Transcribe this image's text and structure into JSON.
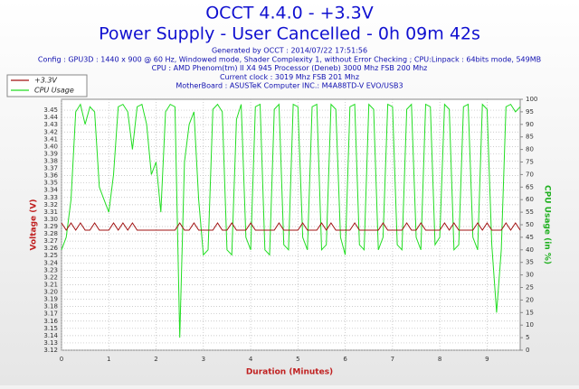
{
  "chart_data": {
    "type": "line",
    "title": "OCCT 4.4.0 - +3.3V",
    "subtitle": "Power Supply - User Cancelled - 0h 09m 42s",
    "info": [
      "Generated by OCCT : 2014/07/22 17:51:56",
      "Config : GPU3D : 1440 x 900 @ 60 Hz, Windowed mode, Shader Complexity 1, without Error Checking ; CPU:Linpack : 64bits mode, 549MB",
      "CPU : AMD Phenom(tm) II X4 945 Processor (Deneb) 3000 Mhz FSB 200 Mhz",
      "Current clock : 3019 Mhz FSB 201 Mhz",
      "MotherBoard : ASUSTeK Computer INC.: M4A88TD-V EVO/USB3"
    ],
    "xlabel": "Duration (Minutes)",
    "ylabel": "Voltage (V)",
    "y2label": "CPU Usage (in %)",
    "grid": true,
    "legend": "top-left",
    "x": [
      0,
      0.1,
      0.2,
      0.3,
      0.4,
      0.5,
      0.6,
      0.7,
      0.8,
      0.9,
      1,
      1.1,
      1.2,
      1.3,
      1.4,
      1.5,
      1.6,
      1.7,
      1.8,
      1.9,
      2,
      2.1,
      2.2,
      2.3,
      2.4,
      2.5,
      2.6,
      2.7,
      2.8,
      2.9,
      3,
      3.1,
      3.2,
      3.3,
      3.4,
      3.5,
      3.6,
      3.7,
      3.8,
      3.9,
      4,
      4.1,
      4.2,
      4.3,
      4.4,
      4.5,
      4.6,
      4.7,
      4.8,
      4.9,
      5,
      5.1,
      5.2,
      5.3,
      5.4,
      5.5,
      5.6,
      5.7,
      5.8,
      5.9,
      6,
      6.1,
      6.2,
      6.3,
      6.4,
      6.5,
      6.6,
      6.7,
      6.8,
      6.9,
      7,
      7.1,
      7.2,
      7.3,
      7.4,
      7.5,
      7.6,
      7.7,
      7.8,
      7.9,
      8,
      8.1,
      8.2,
      8.3,
      8.4,
      8.5,
      8.6,
      8.7,
      8.8,
      8.9,
      9,
      9.1,
      9.2,
      9.3,
      9.4,
      9.5,
      9.6,
      9.7
    ],
    "xlim": [
      0,
      9.7
    ],
    "xticks": [
      0,
      1,
      2,
      3,
      4,
      5,
      6,
      7,
      8,
      9
    ],
    "ylim": [
      3.12,
      3.465
    ],
    "yticks": [
      3.12,
      3.13,
      3.14,
      3.15,
      3.16,
      3.17,
      3.18,
      3.19,
      {
        "value": 3.2,
        "label": "3.20"
      },
      3.21,
      3.22,
      3.23,
      3.24,
      3.25,
      3.26,
      3.27,
      3.28,
      3.29,
      {
        "value": 3.3,
        "label": "3.30"
      },
      3.31,
      3.32,
      3.33,
      3.34,
      3.35,
      3.36,
      3.37,
      3.38,
      3.39,
      {
        "value": 3.4,
        "label": "3.40"
      },
      3.41,
      3.42,
      3.43,
      3.44,
      3.45
    ],
    "y2lim": [
      0,
      100
    ],
    "y2ticks": [
      0,
      5,
      10,
      15,
      20,
      25,
      30,
      35,
      40,
      45,
      50,
      55,
      60,
      65,
      70,
      75,
      80,
      85,
      90,
      95,
      100
    ],
    "series": [
      {
        "name": "+3.3V",
        "color": "#a01010",
        "values": [
          3.295,
          3.285,
          3.295,
          3.285,
          3.295,
          3.285,
          3.285,
          3.295,
          3.285,
          3.285,
          3.285,
          3.295,
          3.285,
          3.295,
          3.285,
          3.295,
          3.285,
          3.285,
          3.285,
          3.285,
          3.285,
          3.285,
          3.285,
          3.285,
          3.285,
          3.295,
          3.285,
          3.285,
          3.295,
          3.285,
          3.285,
          3.285,
          3.285,
          3.295,
          3.285,
          3.285,
          3.295,
          3.285,
          3.285,
          3.285,
          3.295,
          3.285,
          3.285,
          3.285,
          3.285,
          3.285,
          3.295,
          3.285,
          3.285,
          3.285,
          3.285,
          3.295,
          3.285,
          3.285,
          3.285,
          3.295,
          3.285,
          3.295,
          3.285,
          3.285,
          3.285,
          3.285,
          3.295,
          3.285,
          3.285,
          3.285,
          3.285,
          3.285,
          3.295,
          3.285,
          3.285,
          3.285,
          3.285,
          3.295,
          3.285,
          3.285,
          3.295,
          3.285,
          3.285,
          3.285,
          3.285,
          3.295,
          3.285,
          3.295,
          3.285,
          3.285,
          3.285,
          3.285,
          3.295,
          3.285,
          3.295,
          3.285,
          3.285,
          3.285,
          3.295,
          3.285,
          3.295,
          3.285
        ]
      },
      {
        "name": "CPU Usage",
        "color": "#22dd22",
        "axis": "y2",
        "values": [
          40,
          45,
          60,
          95,
          98,
          90,
          97,
          95,
          65,
          60,
          55,
          70,
          97,
          98,
          95,
          80,
          97,
          98,
          90,
          70,
          75,
          55,
          95,
          98,
          97,
          5,
          75,
          90,
          95,
          60,
          38,
          40,
          96,
          98,
          95,
          40,
          38,
          92,
          98,
          45,
          40,
          97,
          98,
          40,
          38,
          96,
          98,
          42,
          40,
          98,
          97,
          45,
          40,
          97,
          98,
          40,
          42,
          98,
          96,
          45,
          38,
          97,
          98,
          42,
          40,
          98,
          96,
          40,
          45,
          98,
          97,
          42,
          40,
          96,
          98,
          45,
          40,
          98,
          97,
          42,
          45,
          98,
          96,
          40,
          42,
          97,
          98,
          45,
          40,
          98,
          96,
          42,
          15,
          40,
          97,
          98,
          95,
          97
        ]
      }
    ]
  }
}
